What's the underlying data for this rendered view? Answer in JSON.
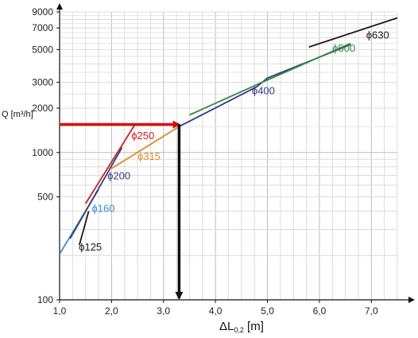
{
  "chart_data": {
    "type": "line",
    "y_scale": "log",
    "xlim": [
      1.0,
      7.5
    ],
    "ylim": [
      100,
      9000
    ],
    "xlabel_main": "ΔL",
    "xlabel_sub": "0,2",
    "xlabel_unit": "[m]",
    "ylabel": "Q [m³/h]",
    "x_ticks": [
      1.0,
      2.0,
      3.0,
      4.0,
      5.0,
      6.0,
      7.0
    ],
    "x_tick_labels": [
      "1,0",
      "2,0",
      "3,0",
      "4,0",
      "5,0",
      "6,0",
      "7,0"
    ],
    "y_ticks": [
      100,
      500,
      1000,
      2000,
      3000,
      5000,
      7000,
      9000
    ],
    "y_tick_labels": [
      "100",
      "500",
      "1000",
      "2000",
      "3000",
      "5000",
      "7000",
      "9000"
    ],
    "grid": true,
    "series": [
      {
        "name": "ϕ125",
        "color": "#1a1a1a",
        "x": [
          1.38,
          1.56
        ],
        "y": [
          235,
          400
        ],
        "label_x": 1.37,
        "label_y": 230
      },
      {
        "name": "ϕ160",
        "color": "#2f8fd1",
        "x": [
          1.0,
          1.75
        ],
        "y": [
          205,
          560
        ],
        "label_x": 1.62,
        "label_y": 420
      },
      {
        "name": "ϕ200",
        "color": "#3a3a7a",
        "x": [
          1.2,
          2.2
        ],
        "y": [
          260,
          1080
        ],
        "label_x": 1.92,
        "label_y": 700
      },
      {
        "name": "ϕ250",
        "color": "#cc1f1f",
        "x": [
          1.5,
          2.45,
          3.3
        ],
        "y": [
          450,
          1550,
          1550
        ],
        "label_x": 2.38,
        "label_y": 1310
      },
      {
        "name": "ϕ315",
        "color": "#e08a2b",
        "x": [
          2.0,
          3.3
        ],
        "y": [
          780,
          1500
        ],
        "label_x": 2.5,
        "label_y": 950
      },
      {
        "name": "ϕ400",
        "color": "#35358a",
        "x": [
          3.3,
          4.8,
          5.0,
          6.6
        ],
        "y": [
          1500,
          2800,
          3200,
          5400
        ],
        "label_x": 4.7,
        "label_y": 2650
      },
      {
        "name": "ϕ500",
        "color": "#2e8b3e",
        "x": [
          3.5,
          4.9,
          6.6
        ],
        "y": [
          1800,
          3000,
          5500
        ],
        "label_x": 6.25,
        "label_y": 5150
      },
      {
        "name": "ϕ630",
        "color": "#1a1a1a",
        "x": [
          5.8,
          7.5
        ],
        "y": [
          5200,
          8200
        ],
        "label_x": 6.9,
        "label_y": 6300
      }
    ],
    "annotations": [
      {
        "type": "arrow",
        "color": "#d01010",
        "from": [
          1.0,
          1550
        ],
        "to": [
          3.3,
          1550
        ]
      },
      {
        "type": "arrow",
        "color": "#111111",
        "from": [
          3.3,
          1550
        ],
        "to": [
          3.3,
          100
        ]
      }
    ]
  }
}
